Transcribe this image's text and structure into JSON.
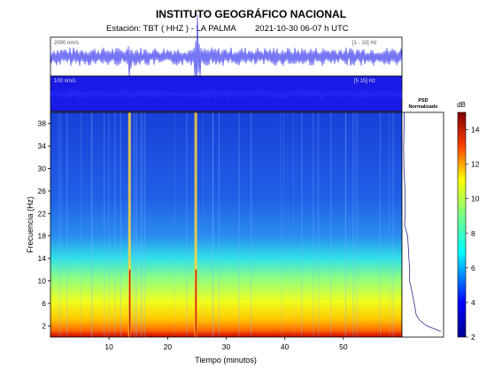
{
  "header": {
    "title": "INSTITUTO GEOGRÁFICO NACIONAL",
    "station": "Estación:  TBT ( HHZ ) - LA PALMA",
    "datetime": "2021-10-30  06-07 h UTC"
  },
  "colors": {
    "trace": "#1a1aee",
    "panel_bg": "#1a1ae6",
    "psd_line": "#2b2b8f"
  },
  "chart_data": [
    {
      "type": "line",
      "name": "seismogram-raw",
      "scale_label": "2000 nm/s",
      "band_label": "[1 - 10] Hz",
      "x": [
        0,
        60
      ],
      "xlim": [
        0,
        60
      ],
      "event_times_min": [
        13.5,
        24.8,
        25.2
      ]
    },
    {
      "type": "line",
      "name": "seismogram-filtered",
      "scale_label": "100 nm/s",
      "band_label": "[5 15] Hz",
      "x": [
        0,
        60
      ],
      "xlim": [
        0,
        60
      ]
    },
    {
      "type": "heatmap",
      "name": "spectrogram",
      "xlabel": "Tiempo (minutos)",
      "ylabel": "Frecuencia (Hz)",
      "xlim": [
        0,
        60
      ],
      "ylim": [
        0,
        40
      ],
      "xticks": [
        10,
        20,
        30,
        40,
        50
      ],
      "yticks": [
        2,
        6,
        10,
        14,
        18,
        22,
        26,
        30,
        34,
        38
      ],
      "colorbar": {
        "label": "dB",
        "range": [
          2,
          15
        ],
        "ticks": [
          2,
          4,
          6,
          8,
          10,
          12,
          14
        ]
      },
      "bright_lines_min": [
        13.5,
        24.8
      ],
      "psd": {
        "title_line1": "PSD",
        "title_line2": "Normalizado",
        "freq_hz": [
          1,
          2,
          3,
          4,
          6,
          8,
          10,
          12,
          14,
          16,
          18,
          20,
          22,
          26,
          30,
          34,
          38,
          40
        ],
        "value": [
          0.95,
          0.6,
          0.42,
          0.34,
          0.27,
          0.22,
          0.18,
          0.16,
          0.14,
          0.12,
          0.1,
          0.06,
          0.05,
          0.045,
          0.04,
          0.035,
          0.03,
          0.03
        ]
      }
    }
  ]
}
